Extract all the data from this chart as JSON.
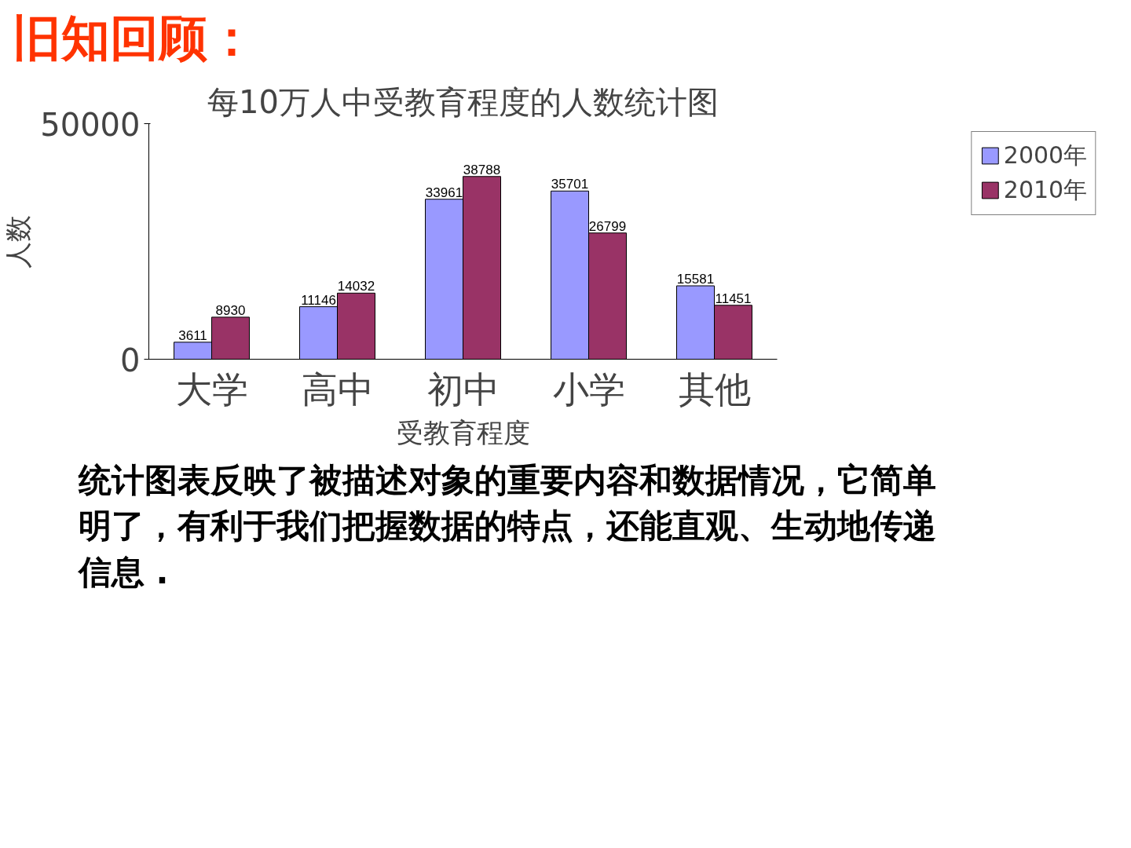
{
  "chart_data": {
    "type": "bar",
    "title": "每10万人中受教育程度的人数统计图",
    "xlabel": "受教育程度",
    "ylabel": "人数",
    "categories": [
      "大学",
      "高中",
      "初中",
      "小学",
      "其他"
    ],
    "series": [
      {
        "name": "2000年",
        "color": "#9999ff",
        "values": [
          3611,
          11146,
          33961,
          35701,
          15581
        ]
      },
      {
        "name": "2010年",
        "color": "#993366",
        "values": [
          8930,
          14032,
          38788,
          26799,
          11451
        ]
      }
    ],
    "ylim": [
      0,
      50000
    ],
    "yticks": [
      0,
      50000
    ],
    "data_labels": true,
    "legend": "top right",
    "grid": false,
    "annotations": [
      "旧知回顾：",
      "统计图表反映了被描述对象的重要内容和数据情况，它简单明了，有利于我们把握数据的特点，还能直观、生动地传递信息 ."
    ]
  }
}
